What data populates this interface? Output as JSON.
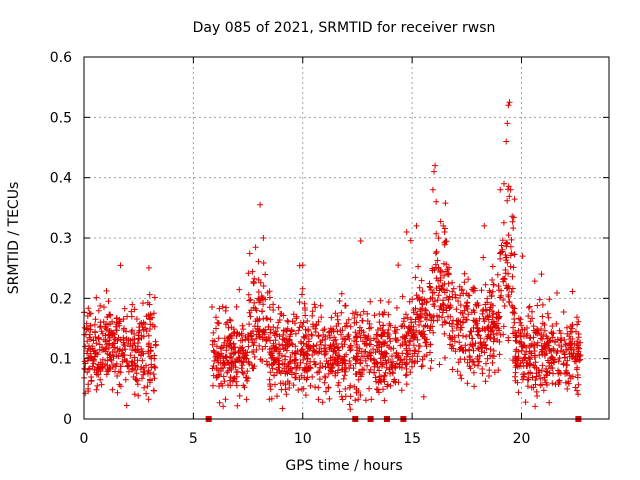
{
  "chart_data": {
    "type": "scatter",
    "title": "Day 085 of 2021, SRMTID for receiver rwsn",
    "xlabel": "GPS time / hours",
    "ylabel": "SRMTID / TECUs",
    "xlim": [
      0,
      24
    ],
    "ylim": [
      0,
      0.6
    ],
    "xticks": [
      "0",
      "5",
      "10",
      "15",
      "20"
    ],
    "yticks": [
      "0",
      "0.1",
      "0.2",
      "0.3",
      "0.4",
      "0.5",
      "0.6"
    ],
    "grid": true,
    "marker": "+",
    "colors": {
      "series": "#e00000",
      "grid": "#a0a0a0",
      "axis": "#000000"
    },
    "series": [
      {
        "name": "SRMTID",
        "segments": [
          {
            "x_start": 0.0,
            "x_end": 3.3,
            "mean": 0.115,
            "spread": 0.04
          },
          {
            "x_start": 5.85,
            "x_end": 7.5,
            "mean": 0.11,
            "spread": 0.04
          },
          {
            "x_start": 7.5,
            "x_end": 8.4,
            "mean": 0.16,
            "spread": 0.05
          },
          {
            "x_start": 8.4,
            "x_end": 14.8,
            "mean": 0.11,
            "spread": 0.04
          },
          {
            "x_start": 14.8,
            "x_end": 16.0,
            "mean": 0.16,
            "spread": 0.045
          },
          {
            "x_start": 16.0,
            "x_end": 16.7,
            "mean": 0.22,
            "spread": 0.05
          },
          {
            "x_start": 16.7,
            "x_end": 19.0,
            "mean": 0.15,
            "spread": 0.045
          },
          {
            "x_start": 19.0,
            "x_end": 19.7,
            "mean": 0.24,
            "spread": 0.06
          },
          {
            "x_start": 19.7,
            "x_end": 22.7,
            "mean": 0.11,
            "spread": 0.04
          }
        ],
        "peaks": [
          {
            "x": 8.05,
            "y": 0.355
          },
          {
            "x": 8.2,
            "y": 0.3
          },
          {
            "x": 14.75,
            "y": 0.31
          },
          {
            "x": 15.2,
            "y": 0.32
          },
          {
            "x": 15.95,
            "y": 0.38
          },
          {
            "x": 16.0,
            "y": 0.41
          },
          {
            "x": 16.05,
            "y": 0.42
          },
          {
            "x": 16.1,
            "y": 0.36
          },
          {
            "x": 18.3,
            "y": 0.32
          },
          {
            "x": 19.2,
            "y": 0.39
          },
          {
            "x": 19.3,
            "y": 0.46
          },
          {
            "x": 19.35,
            "y": 0.49
          },
          {
            "x": 19.4,
            "y": 0.52
          },
          {
            "x": 19.45,
            "y": 0.525
          },
          {
            "x": 19.5,
            "y": 0.38
          },
          {
            "x": 10.0,
            "y": 0.255
          },
          {
            "x": 12.65,
            "y": 0.295
          },
          {
            "x": 20.05,
            "y": 0.27
          }
        ],
        "zero_points": [
          {
            "x": 5.7,
            "y": 0.0
          },
          {
            "x": 12.4,
            "y": 0.0
          },
          {
            "x": 13.1,
            "y": 0.0
          },
          {
            "x": 13.85,
            "y": 0.0
          },
          {
            "x": 14.6,
            "y": 0.0
          },
          {
            "x": 22.6,
            "y": 0.0
          }
        ]
      }
    ]
  }
}
